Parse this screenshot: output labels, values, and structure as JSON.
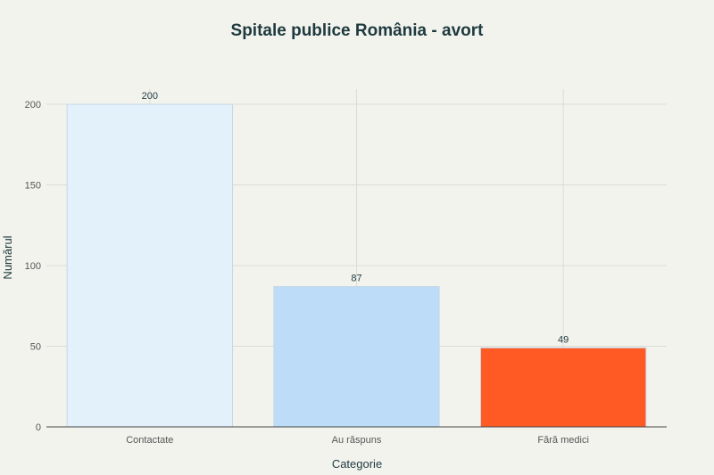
{
  "chart_data": {
    "type": "bar",
    "title": "Spitale publice România - avort",
    "xlabel": "Categorie",
    "ylabel": "Numărul",
    "categories": [
      "Contactate",
      "Au răspuns",
      "Fără medici"
    ],
    "values": [
      200,
      87,
      49
    ],
    "value_labels": [
      "200",
      "87",
      "49"
    ],
    "y_ticks": [
      0,
      50,
      100,
      150,
      200
    ],
    "y_tick_labels": [
      "0",
      "50",
      "100",
      "150",
      "200"
    ],
    "ylim": [
      0,
      210
    ],
    "grid": true,
    "colors": [
      "#e3f1fb",
      "#bcdcf7",
      "#ff5a23"
    ],
    "bar_edge_color": "#c6d8e6",
    "background": "#f3f3ee"
  }
}
